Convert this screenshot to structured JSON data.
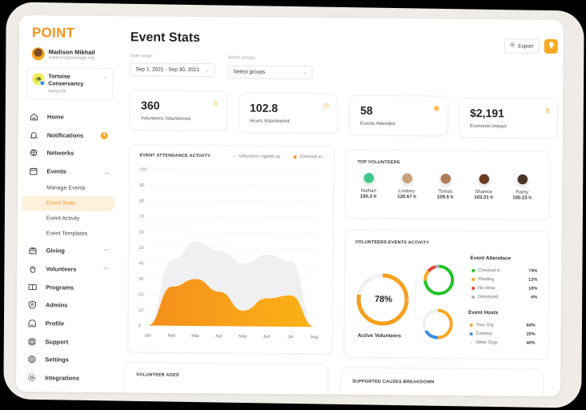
{
  "brand": {
    "logo": "POINT",
    "accent": "#f7941d"
  },
  "user": {
    "name": "Madison Mikhail",
    "email": "madison@pointapp.org"
  },
  "org": {
    "name_line1": "Tortoise",
    "name_line2": "Conservancy",
    "type": "Nonprofit"
  },
  "sidebar": {
    "items": [
      {
        "label": "Home",
        "icon": "home-icon"
      },
      {
        "label": "Notifications",
        "icon": "bell-icon",
        "badge": "3"
      },
      {
        "label": "Networks",
        "icon": "globe-icon"
      },
      {
        "label": "Events",
        "icon": "calendar-icon",
        "expanded": true,
        "children": [
          {
            "label": "Manage Events"
          },
          {
            "label": "Event Stats",
            "active": true
          },
          {
            "label": "Event Activity"
          },
          {
            "label": "Event Templates"
          }
        ]
      },
      {
        "label": "Giving",
        "icon": "gift-icon"
      },
      {
        "label": "Volunteers",
        "icon": "hand-icon"
      },
      {
        "label": "Programs",
        "icon": "book-icon"
      },
      {
        "label": "Admins",
        "icon": "shield-icon"
      },
      {
        "label": "Profile",
        "icon": "profile-icon"
      },
      {
        "label": "Support",
        "icon": "lifebuoy-icon"
      },
      {
        "label": "Settings",
        "icon": "gear-icon"
      },
      {
        "label": "Integrations",
        "icon": "integrations-icon"
      }
    ]
  },
  "header": {
    "title": "Event Stats",
    "date_range_label": "Date range:",
    "date_range_value": "Sep 1, 2021 - Sep 30, 2021",
    "groups_label": "Select groups:",
    "groups_value": "Select groups",
    "export_label": "Export"
  },
  "stats": [
    {
      "value": "360",
      "label": "Volunteers Volunteered",
      "icon": "person-icon",
      "glyph": "♙"
    },
    {
      "value": "102.8",
      "label": "Hours Volunteered",
      "icon": "clock-icon",
      "glyph": "◷"
    },
    {
      "value": "58",
      "label": "Events Attended",
      "icon": "calendar-icon",
      "glyph": "▣"
    },
    {
      "value": "$2,191",
      "label": "Economic Impact",
      "icon": "dollar-icon",
      "glyph": "$"
    }
  ],
  "attendance": {
    "title": "EVENT ATTENDANCE ACTIVITY",
    "legend_signed": "Volunteers signed up",
    "legend_checked": "Checked in"
  },
  "chart_data": {
    "type": "area",
    "title": "EVENT ATTENDANCE ACTIVITY",
    "categories": [
      "Jan",
      "Feb",
      "Mar",
      "Apr",
      "May",
      "Jun",
      "Jul",
      "Aug"
    ],
    "yticks": [
      0,
      10,
      20,
      30,
      40,
      50,
      60,
      70,
      80,
      90,
      100
    ],
    "ylim": [
      0,
      100
    ],
    "grid": true,
    "legend_position": "top-right",
    "series": [
      {
        "name": "Volunteers signed up",
        "color": "#f0f0f2",
        "values": [
          0,
          42,
          54,
          48,
          40,
          46,
          42,
          0
        ]
      },
      {
        "name": "Checked in",
        "color": "#f7a01e",
        "values": [
          0,
          25,
          30,
          22,
          10,
          18,
          20,
          0
        ]
      }
    ]
  },
  "top_volunteers": {
    "title": "TOP VOLUNTEERS",
    "list": [
      {
        "name": "Nathan",
        "hours": "150.3 h",
        "color": "#3cc98a"
      },
      {
        "name": "Lindsey",
        "hours": "120.67 h",
        "color": "#c9a27a"
      },
      {
        "name": "Tomas",
        "hours": "109.5 h",
        "color": "#b07b5a"
      },
      {
        "name": "Shanice",
        "hours": "103.21 h",
        "color": "#6b3d22"
      },
      {
        "name": "Ramy",
        "hours": "100.23 h",
        "color": "#4a3426"
      }
    ]
  },
  "activity": {
    "title": "VOLUNTEERS EVENTS ACTIVITY",
    "active_pct": "78%",
    "active_label": "Active Volunteers",
    "attendance_title": "Event Attendace",
    "attendance": [
      {
        "label": "Checked in",
        "pct": "74%",
        "color": "#22c32a"
      },
      {
        "label": "Pending",
        "pct": "12%",
        "color": "#f7a823"
      },
      {
        "label": "No show",
        "pct": "10%",
        "color": "#e8423a"
      },
      {
        "label": "Dismissed",
        "pct": "4%",
        "color": "#a8aeb8"
      }
    ],
    "hosts_title": "Event Hosts",
    "hosts": [
      {
        "label": "Your Org",
        "pct": "60%",
        "color": "#f7a823"
      },
      {
        "label": "Cohosts",
        "pct": "20%",
        "color": "#3a8ee6"
      },
      {
        "label": "Other Orgs",
        "pct": "40%",
        "color": "#eeeeee"
      }
    ]
  },
  "bottom": {
    "ages_title": "VOLUNTEER AGES",
    "causes_title": "SUPPORTED CAUSES BREAKDOWN"
  }
}
